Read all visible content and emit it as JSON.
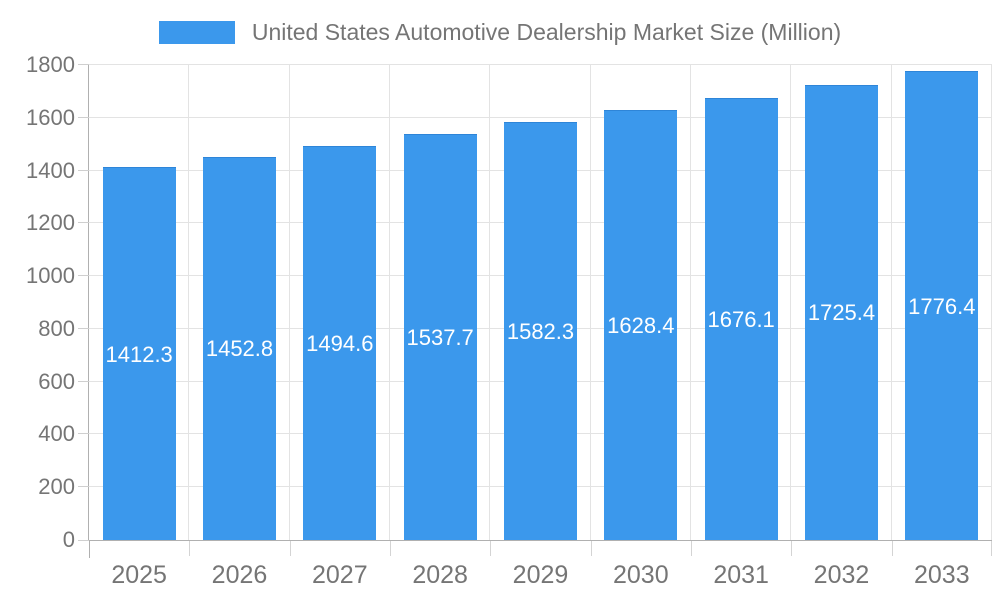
{
  "legend": {
    "label": "United States Automotive Dealership Market Size (Million)",
    "swatch_color": "#3b98ec"
  },
  "chart_data": {
    "type": "bar",
    "title": "United States Automotive Dealership Market Size (Million)",
    "categories": [
      "2025",
      "2026",
      "2027",
      "2028",
      "2029",
      "2030",
      "2031",
      "2032",
      "2033"
    ],
    "values": [
      1412.3,
      1452.8,
      1494.6,
      1537.7,
      1582.3,
      1628.4,
      1676.1,
      1725.4,
      1776.4
    ],
    "value_labels": [
      "1412.3",
      "1452.8",
      "1494.6",
      "1537.7",
      "1582.3",
      "1628.4",
      "1676.1",
      "1725.4",
      "1776.4"
    ],
    "xlabel": "",
    "ylabel": "",
    "ylim": [
      0,
      1800
    ],
    "ytick_step": 200,
    "ytick_labels": [
      "0",
      "200",
      "400",
      "600",
      "800",
      "1000",
      "1200",
      "1400",
      "1600",
      "1800"
    ],
    "grid": true,
    "legend_position": "top",
    "bar_color": "#3b98ec",
    "bar_label_color": "#ffffff",
    "axis_text_color": "#757575",
    "grid_color": "#e3e3e3",
    "axis_line_color": "#b0b0b0"
  }
}
